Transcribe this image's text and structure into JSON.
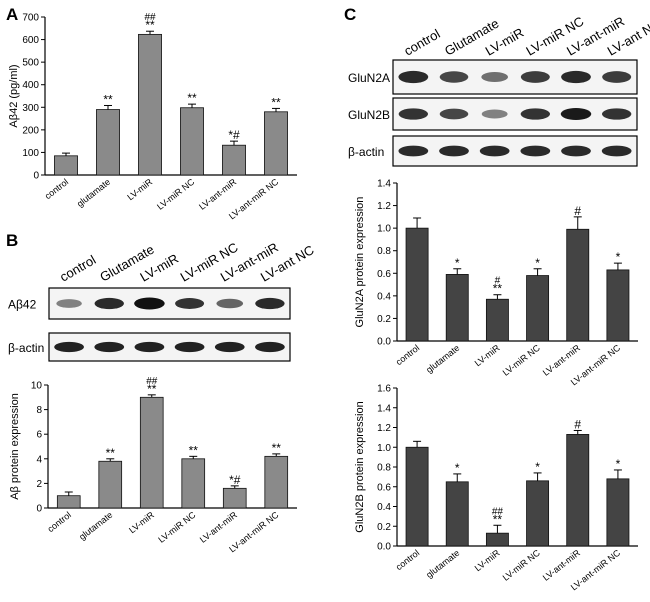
{
  "panels": {
    "A": {
      "label": "A"
    },
    "B": {
      "label": "B"
    },
    "C": {
      "label": "C"
    }
  },
  "blots": {
    "B": {
      "lanes": [
        "control",
        "Glutamate",
        "LV-miR",
        "LV-miR NC",
        "LV-ant-miR",
        "LV-ant NC"
      ],
      "rows": [
        "Aβ42",
        "β-actin"
      ],
      "intensities": [
        [
          0.35,
          0.85,
          1.0,
          0.8,
          0.5,
          0.85
        ],
        [
          0.9,
          0.9,
          0.9,
          0.9,
          0.9,
          0.9
        ]
      ]
    },
    "C": {
      "lanes": [
        "control",
        "Glutamate",
        "LV-miR",
        "LV-miR NC",
        "LV-ant-miR",
        "LV-ant NC"
      ],
      "rows": [
        "GluN2A",
        "GluN2B",
        "β-actin"
      ],
      "intensities": [
        [
          0.85,
          0.7,
          0.45,
          0.75,
          0.85,
          0.75
        ],
        [
          0.8,
          0.7,
          0.35,
          0.8,
          0.95,
          0.8
        ],
        [
          0.85,
          0.85,
          0.85,
          0.85,
          0.85,
          0.85
        ]
      ]
    }
  },
  "chart_data": [
    {
      "id": "A",
      "type": "bar",
      "ylabel": "Aβ42 (pg/ml)",
      "ylim": [
        0,
        700
      ],
      "yticks": [
        "0",
        "100",
        "200",
        "300",
        "400",
        "500",
        "600",
        "700"
      ],
      "categories": [
        "control",
        "glutamate",
        "LV-miR",
        "LV-miR NC",
        "LV-ant-miR",
        "LV-ant-miR NC"
      ],
      "values": [
        85,
        290,
        623,
        298,
        132,
        280
      ],
      "errors": [
        12,
        18,
        14,
        16,
        18,
        15
      ],
      "annotations": [
        [
          "",
          ""
        ],
        [
          "**",
          ""
        ],
        [
          "**",
          "##"
        ],
        [
          "**",
          ""
        ],
        [
          "*#",
          ""
        ],
        [
          "**",
          ""
        ]
      ],
      "bar_color": "#8a8a8a"
    },
    {
      "id": "B",
      "type": "bar",
      "ylabel": "Aβ protein expression",
      "ylim": [
        0,
        10
      ],
      "yticks": [
        "0",
        "2",
        "4",
        "6",
        "8",
        "10"
      ],
      "categories": [
        "control",
        "glutamate",
        "LV-miR",
        "LV-miR NC",
        "LV-ant-miR",
        "LV-ant-miR NC"
      ],
      "values": [
        1.0,
        3.8,
        9.0,
        4.0,
        1.6,
        4.2
      ],
      "errors": [
        0.3,
        0.2,
        0.2,
        0.2,
        0.2,
        0.2
      ],
      "annotations": [
        [
          "",
          ""
        ],
        [
          "**",
          ""
        ],
        [
          "**",
          "##"
        ],
        [
          "**",
          ""
        ],
        [
          "*#",
          ""
        ],
        [
          "**",
          ""
        ]
      ],
      "bar_color": "#8a8a8a"
    },
    {
      "id": "C1",
      "type": "bar",
      "ylabel": "GluN2A protein expression",
      "ylim": [
        0,
        1.4
      ],
      "yticks": [
        "0.0",
        "0.2",
        "0.4",
        "0.6",
        "0.8",
        "1.0",
        "1.2",
        "1.4"
      ],
      "categories": [
        "control",
        "glutamate",
        "LV-miR",
        "LV-miR NC",
        "LV-ant-miR",
        "LV-ant-miR NC"
      ],
      "values": [
        1.0,
        0.59,
        0.37,
        0.58,
        0.99,
        0.63
      ],
      "errors": [
        0.09,
        0.05,
        0.04,
        0.06,
        0.11,
        0.06
      ],
      "annotations": [
        [
          "",
          ""
        ],
        [
          "*",
          ""
        ],
        [
          "**",
          "#"
        ],
        [
          "*",
          ""
        ],
        [
          "#",
          ""
        ],
        [
          "*",
          ""
        ]
      ],
      "bar_color": "#444444"
    },
    {
      "id": "C2",
      "type": "bar",
      "ylabel": "GluN2B protein expression",
      "ylim": [
        0,
        1.6
      ],
      "yticks": [
        "0.0",
        "0.2",
        "0.4",
        "0.6",
        "0.8",
        "1.0",
        "1.2",
        "1.4",
        "1.6"
      ],
      "categories": [
        "control",
        "glutamate",
        "LV-miR",
        "LV-miR NC",
        "LV-ant-miR",
        "LV-ant-miR NC"
      ],
      "values": [
        1.0,
        0.65,
        0.13,
        0.66,
        1.13,
        0.68
      ],
      "errors": [
        0.06,
        0.08,
        0.08,
        0.08,
        0.04,
        0.09
      ],
      "annotations": [
        [
          "",
          ""
        ],
        [
          "*",
          ""
        ],
        [
          "**",
          "##"
        ],
        [
          "*",
          ""
        ],
        [
          "#",
          ""
        ],
        [
          "*",
          ""
        ]
      ],
      "bar_color": "#444444"
    }
  ]
}
